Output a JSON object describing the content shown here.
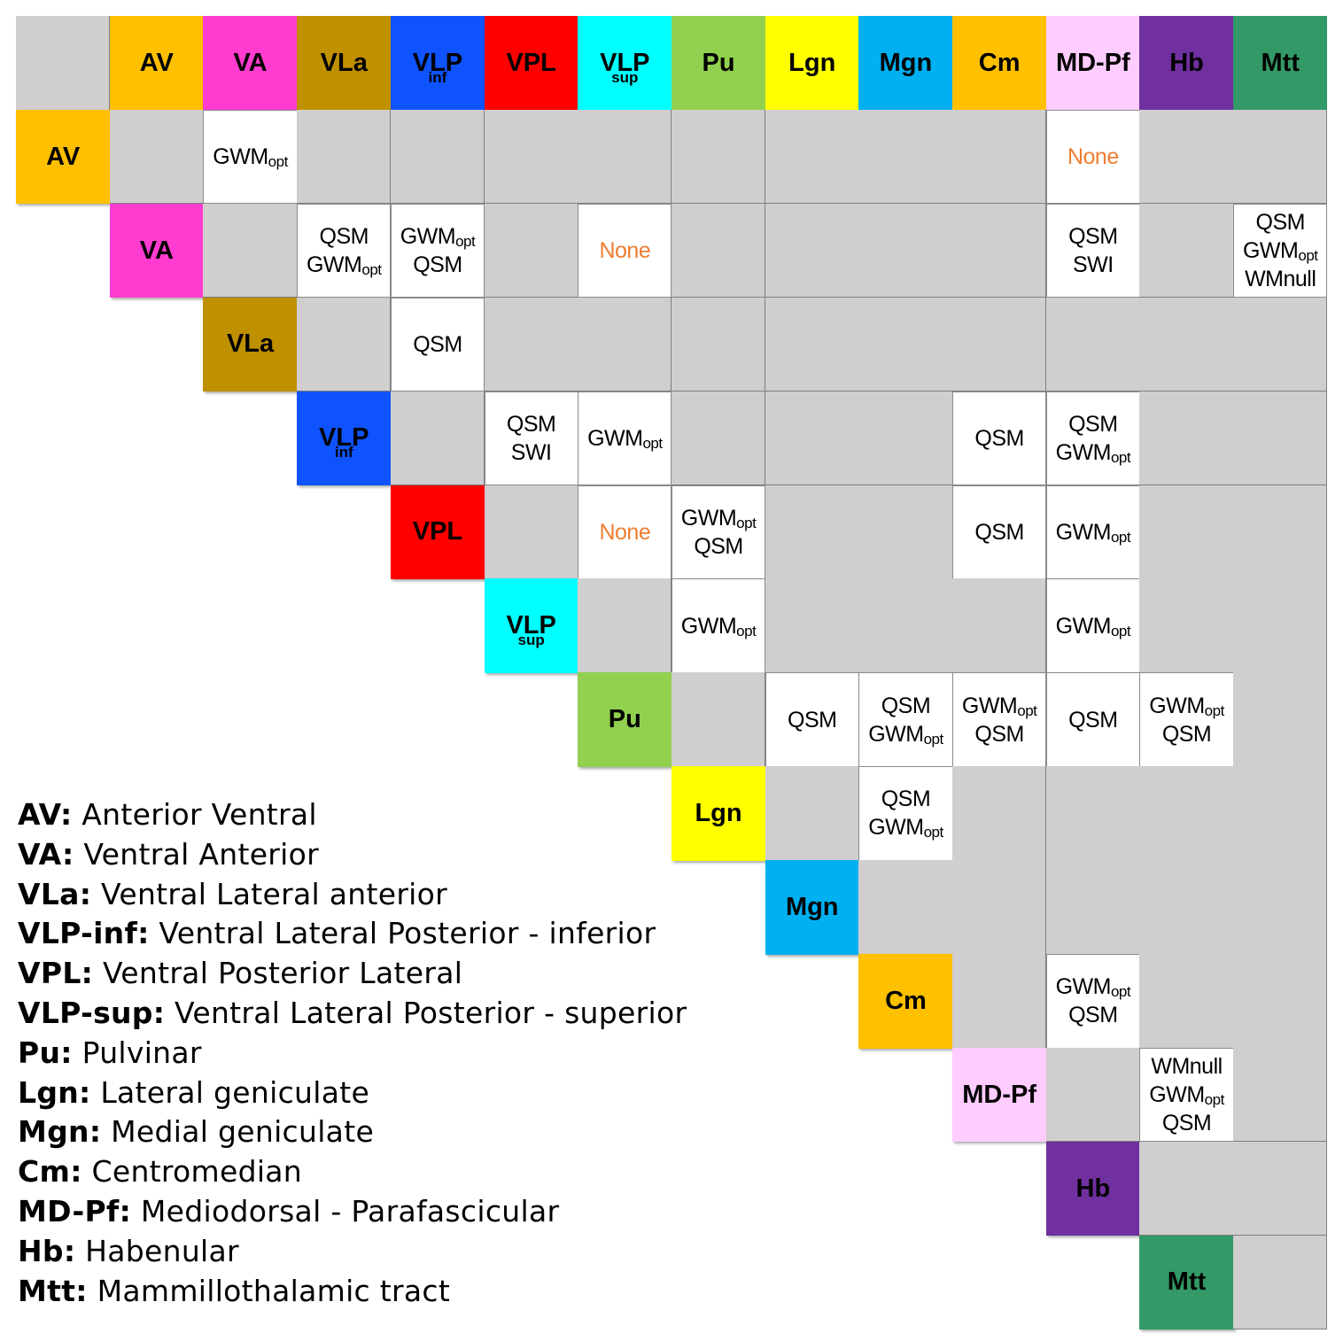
{
  "nuclei": [
    {
      "id": "AV",
      "base": "AV",
      "sub": "",
      "color": "#ffc000"
    },
    {
      "id": "VA",
      "base": "VA",
      "sub": "",
      "color": "#ff3ccf"
    },
    {
      "id": "VLa",
      "base": "VLa",
      "sub": "",
      "color": "#bf9000"
    },
    {
      "id": "VLPinf",
      "base": "VLP",
      "sub": "inf",
      "color": "#0f53ff"
    },
    {
      "id": "VPL",
      "base": "VPL",
      "sub": "",
      "color": "#ff0000"
    },
    {
      "id": "VLPsup",
      "base": "VLP",
      "sub": "sup",
      "color": "#00ffff"
    },
    {
      "id": "Pu",
      "base": "Pu",
      "sub": "",
      "color": "#92d050"
    },
    {
      "id": "Lgn",
      "base": "Lgn",
      "sub": "",
      "color": "#ffff00"
    },
    {
      "id": "Mgn",
      "base": "Mgn",
      "sub": "",
      "color": "#00b0f0"
    },
    {
      "id": "Cm",
      "base": "Cm",
      "sub": "",
      "color": "#ffc000"
    },
    {
      "id": "MD-Pf",
      "base": "MD-Pf",
      "sub": "",
      "color": "#ffccff"
    },
    {
      "id": "Hb",
      "base": "Hb",
      "sub": "",
      "color": "#7030a0"
    },
    {
      "id": "Mtt",
      "base": "Mtt",
      "sub": "",
      "color": "#339966"
    }
  ],
  "colors": {
    "gray_cell": "#d0cece",
    "white_cell": "#ffffff",
    "none_text": "#ed7d31"
  },
  "pair_contrasts": [
    {
      "row": "AV",
      "col": "VA",
      "lines": [
        {
          "base": "GWM",
          "sub": "opt"
        }
      ]
    },
    {
      "row": "AV",
      "col": "MD-Pf",
      "none": true,
      "lines": [
        {
          "base": "None",
          "sub": ""
        }
      ]
    },
    {
      "row": "VA",
      "col": "VLa",
      "lines": [
        {
          "base": "QSM",
          "sub": ""
        },
        {
          "base": "GWM",
          "sub": "opt"
        }
      ]
    },
    {
      "row": "VA",
      "col": "VLPinf",
      "lines": [
        {
          "base": "GWM",
          "sub": "opt"
        },
        {
          "base": "QSM",
          "sub": ""
        }
      ]
    },
    {
      "row": "VA",
      "col": "VLPsup",
      "none": true,
      "lines": [
        {
          "base": "None",
          "sub": ""
        }
      ]
    },
    {
      "row": "VA",
      "col": "MD-Pf",
      "lines": [
        {
          "base": "QSM",
          "sub": ""
        },
        {
          "base": "SWI",
          "sub": ""
        }
      ]
    },
    {
      "row": "VA",
      "col": "Mtt",
      "lines": [
        {
          "base": "QSM",
          "sub": ""
        },
        {
          "base": "GWM",
          "sub": "opt"
        },
        {
          "base": "WMnull",
          "sub": ""
        }
      ]
    },
    {
      "row": "VLa",
      "col": "VLPinf",
      "lines": [
        {
          "base": "QSM",
          "sub": ""
        }
      ]
    },
    {
      "row": "VLPinf",
      "col": "VPL",
      "lines": [
        {
          "base": "QSM",
          "sub": ""
        },
        {
          "base": "SWI",
          "sub": ""
        }
      ]
    },
    {
      "row": "VLPinf",
      "col": "VLPsup",
      "lines": [
        {
          "base": "GWM",
          "sub": "opt"
        }
      ]
    },
    {
      "row": "VLPinf",
      "col": "Cm",
      "lines": [
        {
          "base": "QSM",
          "sub": ""
        }
      ]
    },
    {
      "row": "VLPinf",
      "col": "MD-Pf",
      "lines": [
        {
          "base": "QSM",
          "sub": ""
        },
        {
          "base": "GWM",
          "sub": "opt"
        }
      ]
    },
    {
      "row": "VPL",
      "col": "VLPsup",
      "none": true,
      "lines": [
        {
          "base": "None",
          "sub": ""
        }
      ]
    },
    {
      "row": "VPL",
      "col": "Pu",
      "lines": [
        {
          "base": "GWM",
          "sub": "opt"
        },
        {
          "base": "QSM",
          "sub": ""
        }
      ]
    },
    {
      "row": "VPL",
      "col": "Cm",
      "lines": [
        {
          "base": "QSM",
          "sub": ""
        }
      ]
    },
    {
      "row": "VPL",
      "col": "MD-Pf",
      "lines": [
        {
          "base": "GWM",
          "sub": "opt"
        }
      ]
    },
    {
      "row": "VLPsup",
      "col": "Pu",
      "lines": [
        {
          "base": "GWM",
          "sub": "opt"
        }
      ]
    },
    {
      "row": "VLPsup",
      "col": "MD-Pf",
      "lines": [
        {
          "base": "GWM",
          "sub": "opt"
        }
      ]
    },
    {
      "row": "Pu",
      "col": "Lgn",
      "lines": [
        {
          "base": "QSM",
          "sub": ""
        }
      ]
    },
    {
      "row": "Pu",
      "col": "Mgn",
      "lines": [
        {
          "base": "QSM",
          "sub": ""
        },
        {
          "base": "GWM",
          "sub": "opt"
        }
      ]
    },
    {
      "row": "Pu",
      "col": "Cm",
      "lines": [
        {
          "base": "GWM",
          "sub": "opt"
        },
        {
          "base": "QSM",
          "sub": ""
        }
      ]
    },
    {
      "row": "Pu",
      "col": "MD-Pf",
      "lines": [
        {
          "base": "QSM",
          "sub": ""
        }
      ]
    },
    {
      "row": "Pu",
      "col": "Hb",
      "lines": [
        {
          "base": "GWM",
          "sub": "opt"
        },
        {
          "base": "QSM",
          "sub": ""
        }
      ]
    },
    {
      "row": "Lgn",
      "col": "Mgn",
      "lines": [
        {
          "base": "QSM",
          "sub": ""
        },
        {
          "base": "GWM",
          "sub": "opt"
        }
      ]
    },
    {
      "row": "Cm",
      "col": "MD-Pf",
      "lines": [
        {
          "base": "GWM",
          "sub": "opt"
        },
        {
          "base": "QSM",
          "sub": ""
        }
      ]
    },
    {
      "row": "MD-Pf",
      "col": "Hb",
      "lines": [
        {
          "base": "WMnull",
          "sub": ""
        },
        {
          "base": "GWM",
          "sub": "opt"
        },
        {
          "base": "QSM",
          "sub": ""
        }
      ]
    }
  ],
  "legend": [
    {
      "abbr": "AV:",
      "text": " Anterior Ventral"
    },
    {
      "abbr": "VA:",
      "text": " Ventral Anterior"
    },
    {
      "abbr": "VLa:",
      "text": " Ventral Lateral anterior"
    },
    {
      "abbr": "VLP-inf:",
      "text": " Ventral Lateral Posterior - inferior"
    },
    {
      "abbr": "VPL:",
      "text": " Ventral Posterior Lateral"
    },
    {
      "abbr": "VLP-sup:",
      "text": " Ventral Lateral Posterior - superior"
    },
    {
      "abbr": "Pu:",
      "text": " Pulvinar"
    },
    {
      "abbr": "Lgn:",
      "text": " Lateral geniculate"
    },
    {
      "abbr": "Mgn:",
      "text": " Medial geniculate"
    },
    {
      "abbr": "Cm:",
      "text": " Centromedian"
    },
    {
      "abbr": "MD-Pf:",
      "text": " Mediodorsal - Parafascicular"
    },
    {
      "abbr": "Hb:",
      "text": " Habenular"
    },
    {
      "abbr": "Mtt:",
      "text": " Mammillothalamic tract"
    }
  ]
}
